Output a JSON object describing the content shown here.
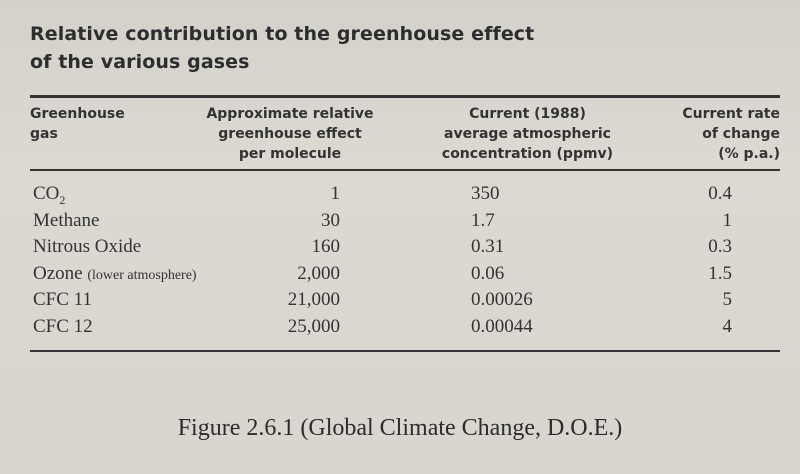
{
  "title": {
    "line1": "Relative contribution to the greenhouse effect",
    "line2": "of the various gases"
  },
  "headers": {
    "gas": [
      "Greenhouse",
      "gas"
    ],
    "effect": [
      "Approximate relative",
      "greenhouse effect",
      "per molecule"
    ],
    "concentration": [
      "Current (1988)",
      "average atmospheric",
      "concentration (ppmv)"
    ],
    "rate": [
      "Current rate",
      "of change",
      "(% p.a.)"
    ]
  },
  "rows": [
    {
      "gas": "CO",
      "gas_sub": "2",
      "gas_note": "",
      "effect": "1",
      "concentration": "350",
      "rate": "0.4"
    },
    {
      "gas": "Methane",
      "gas_sub": "",
      "gas_note": "",
      "effect": "30",
      "concentration": "1.7",
      "rate": "1"
    },
    {
      "gas": "Nitrous Oxide",
      "gas_sub": "",
      "gas_note": "",
      "effect": "160",
      "concentration": "0.31",
      "rate": "0.3"
    },
    {
      "gas": "Ozone",
      "gas_sub": "",
      "gas_note": "(lower atmosphere)",
      "effect": "2,000",
      "concentration": "0.06",
      "rate": "1.5"
    },
    {
      "gas": "CFC 11",
      "gas_sub": "",
      "gas_note": "",
      "effect": "21,000",
      "concentration": "0.00026",
      "rate": "5"
    },
    {
      "gas": "CFC 12",
      "gas_sub": "",
      "gas_note": "",
      "effect": "25,000",
      "concentration": "0.00044",
      "rate": "4"
    }
  ],
  "caption": "Figure 2.6.1 (Global Climate Change, D.O.E.)"
}
